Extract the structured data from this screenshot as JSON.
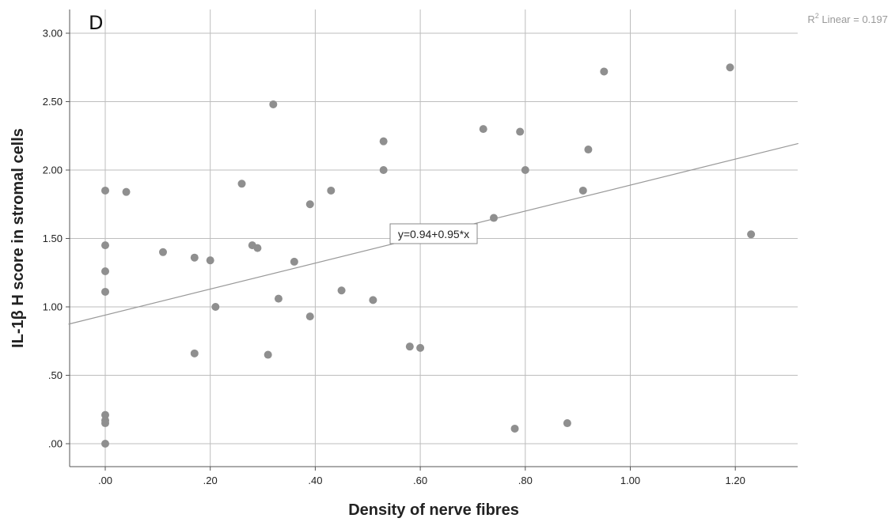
{
  "chart_data": {
    "type": "scatter",
    "panel_label": "D",
    "xlabel": "Density of nerve fibres",
    "ylabel": "IL-1β H score in stromal cells",
    "xlim": [
      -0.07,
      1.32
    ],
    "ylim": [
      -0.17,
      3.17
    ],
    "x_ticks": [
      0.0,
      0.2,
      0.4,
      0.6,
      0.8,
      1.0,
      1.2
    ],
    "x_tick_labels": [
      ".00",
      ".20",
      ".40",
      ".60",
      ".80",
      "1.00",
      "1.20"
    ],
    "y_ticks": [
      0.0,
      0.5,
      1.0,
      1.5,
      2.0,
      2.5,
      3.0
    ],
    "y_tick_labels": [
      ".00",
      ".50",
      "1.00",
      "1.50",
      "2.00",
      "2.50",
      "3.00"
    ],
    "grid": true,
    "points": [
      {
        "x": 0.0,
        "y": 1.85
      },
      {
        "x": 0.0,
        "y": 1.45
      },
      {
        "x": 0.0,
        "y": 1.26
      },
      {
        "x": 0.0,
        "y": 1.11
      },
      {
        "x": 0.0,
        "y": 0.21
      },
      {
        "x": 0.0,
        "y": 0.17
      },
      {
        "x": 0.0,
        "y": 0.15
      },
      {
        "x": 0.0,
        "y": 0.0
      },
      {
        "x": 0.04,
        "y": 1.84
      },
      {
        "x": 0.11,
        "y": 1.4
      },
      {
        "x": 0.17,
        "y": 1.36
      },
      {
        "x": 0.17,
        "y": 0.66
      },
      {
        "x": 0.2,
        "y": 1.34
      },
      {
        "x": 0.21,
        "y": 1.0
      },
      {
        "x": 0.26,
        "y": 1.9
      },
      {
        "x": 0.28,
        "y": 1.45
      },
      {
        "x": 0.29,
        "y": 1.43
      },
      {
        "x": 0.31,
        "y": 0.65
      },
      {
        "x": 0.32,
        "y": 2.48
      },
      {
        "x": 0.33,
        "y": 1.06
      },
      {
        "x": 0.36,
        "y": 1.33
      },
      {
        "x": 0.39,
        "y": 1.75
      },
      {
        "x": 0.39,
        "y": 0.93
      },
      {
        "x": 0.43,
        "y": 1.85
      },
      {
        "x": 0.45,
        "y": 1.12
      },
      {
        "x": 0.51,
        "y": 1.05
      },
      {
        "x": 0.53,
        "y": 2.21
      },
      {
        "x": 0.53,
        "y": 2.0
      },
      {
        "x": 0.58,
        "y": 0.71
      },
      {
        "x": 0.6,
        "y": 0.7
      },
      {
        "x": 0.72,
        "y": 2.3
      },
      {
        "x": 0.74,
        "y": 1.65
      },
      {
        "x": 0.78,
        "y": 0.11
      },
      {
        "x": 0.79,
        "y": 2.28
      },
      {
        "x": 0.8,
        "y": 2.0
      },
      {
        "x": 0.88,
        "y": 0.15
      },
      {
        "x": 0.91,
        "y": 1.85
      },
      {
        "x": 0.92,
        "y": 2.15
      },
      {
        "x": 0.95,
        "y": 2.72
      },
      {
        "x": 1.19,
        "y": 2.75
      },
      {
        "x": 1.23,
        "y": 1.53
      }
    ],
    "fit_line": {
      "intercept": 0.94,
      "slope": 0.95,
      "equation_label": "y=0.94+0.95*x"
    },
    "r2_label": {
      "prefix": "R",
      "sup": "2",
      "text": " Linear = 0.197"
    },
    "colors": {
      "points": "#8f8f8f",
      "grid": "#bdbdbd",
      "fit_line": "#999999",
      "axis": "#555555"
    }
  }
}
